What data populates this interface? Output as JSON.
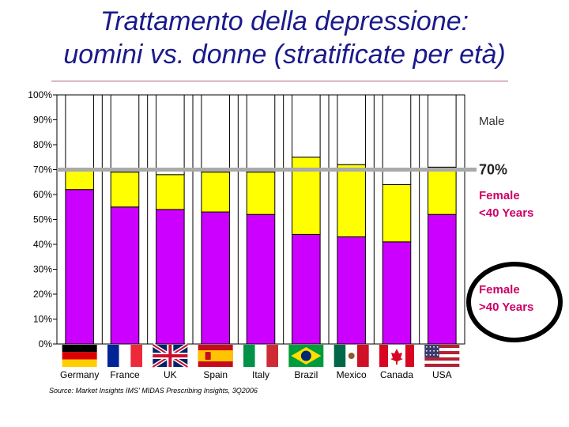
{
  "title_line1": "Trattamento della depressione:",
  "title_line2": "uomini vs. donne (stratificate per età)",
  "source": "Source: Market Insights IMS' MIDAS Prescribing Insights, 3Q2006",
  "reference_label": "70%",
  "colors": {
    "female_over40": "#cc00ff",
    "female_under40": "#ffff00",
    "male": "#ffffff",
    "reference_line": "#aaaaaa",
    "title": "#1a1a8c",
    "female_text": "#cc0066"
  },
  "chart_data": {
    "type": "bar",
    "stacked": true,
    "categories": [
      "Germany",
      "France",
      "UK",
      "Spain",
      "Italy",
      "Brazil",
      "Mexico",
      "Canada",
      "USA"
    ],
    "series": [
      {
        "name": "Female >40 Years",
        "values": [
          62,
          55,
          54,
          53,
          52,
          44,
          43,
          41,
          52
        ]
      },
      {
        "name": "Female <40 Years",
        "values": [
          8,
          14,
          14,
          16,
          17,
          31,
          29,
          23,
          19
        ]
      },
      {
        "name": "Male",
        "values": [
          30,
          31,
          32,
          31,
          31,
          25,
          28,
          36,
          29
        ]
      }
    ],
    "legend_labels": {
      "male": "Male",
      "female_under40": "Female <40 Years",
      "female_over40": "Female >40 Years"
    },
    "y_ticks": [
      "0%",
      "10%",
      "20%",
      "30%",
      "40%",
      "50%",
      "60%",
      "70%",
      "80%",
      "90%",
      "100%"
    ],
    "ylim": [
      0,
      100
    ],
    "reference_line": 70,
    "flag_icons": [
      "germany-flag-icon",
      "france-flag-icon",
      "uk-flag-icon",
      "spain-flag-icon",
      "italy-flag-icon",
      "brazil-flag-icon",
      "mexico-flag-icon",
      "canada-flag-icon",
      "usa-flag-icon"
    ],
    "grid": true,
    "legend_position": "right"
  }
}
